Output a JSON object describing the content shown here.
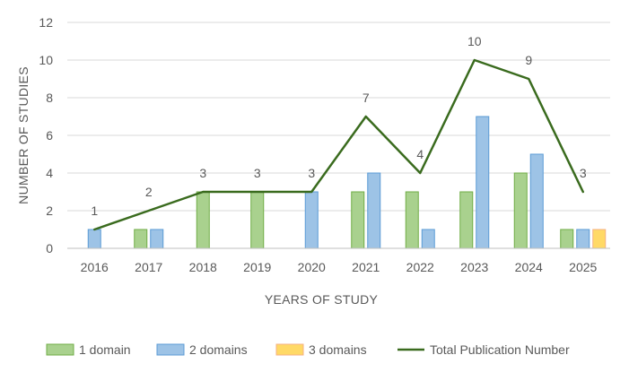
{
  "chart_data": {
    "type": "bar",
    "title": "",
    "xlabel": "YEARS OF STUDY",
    "ylabel": "NUMBER OF STUDIES",
    "ylim": [
      0,
      12
    ],
    "yticks": [
      0,
      2,
      4,
      6,
      8,
      10,
      12
    ],
    "grid": true,
    "legend_position": "bottom",
    "categories": [
      "2016",
      "2017",
      "2018",
      "2019",
      "2020",
      "2021",
      "2022",
      "2023",
      "2024",
      "2025"
    ],
    "series": [
      {
        "name": "1 domain",
        "kind": "bar",
        "color": "#a9d18e",
        "stroke": "#70ad47",
        "values": [
          0,
          1,
          3,
          3,
          0,
          3,
          3,
          3,
          4,
          1
        ]
      },
      {
        "name": "2 domains",
        "kind": "bar",
        "color": "#9dc3e6",
        "stroke": "#5b9bd5",
        "values": [
          1,
          1,
          0,
          0,
          3,
          4,
          1,
          7,
          5,
          1
        ]
      },
      {
        "name": "3 domains",
        "kind": "bar",
        "color": "#ffd966",
        "stroke": "#f4b183",
        "values": [
          0,
          0,
          0,
          0,
          0,
          0,
          0,
          0,
          0,
          1
        ]
      },
      {
        "name": "Total Publication Number",
        "kind": "line",
        "color": "#3a6b1e",
        "values": [
          1,
          2,
          3,
          3,
          3,
          7,
          4,
          10,
          9,
          3
        ]
      }
    ],
    "point_labels": [
      "1",
      "2",
      "3",
      "3",
      "3",
      "7",
      "4",
      "10",
      "9",
      "3"
    ]
  }
}
